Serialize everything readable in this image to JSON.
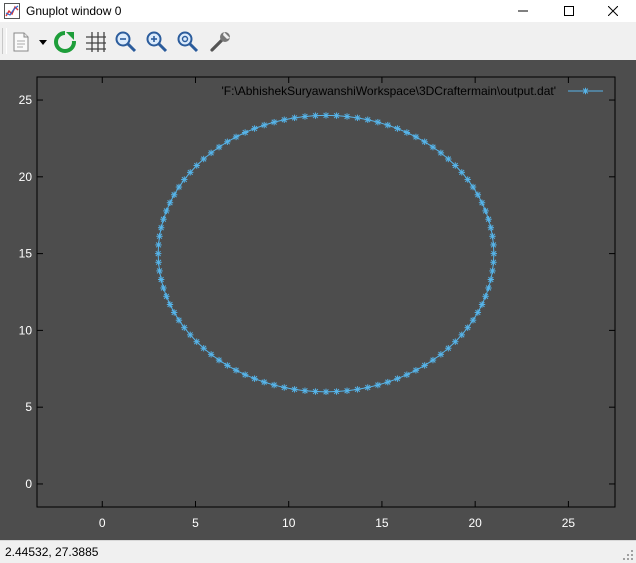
{
  "window": {
    "title": "Gnuplot window 0",
    "icons": {
      "app": "gnuplot-app-icon",
      "minimize": "minimize-icon",
      "maximize": "maximize-icon",
      "close": "close-icon"
    }
  },
  "toolbar": {
    "items": [
      {
        "name": "copy-to-clipboard-button",
        "icon": "clipboard-icon"
      },
      {
        "name": "dropdown-button",
        "icon": "chevron-down-icon"
      },
      {
        "name": "replot-button",
        "icon": "replot-icon"
      },
      {
        "name": "grid-button",
        "icon": "grid-icon"
      },
      {
        "name": "zoom-out-button",
        "icon": "zoom-out-icon"
      },
      {
        "name": "zoom-in-button",
        "icon": "zoom-in-icon"
      },
      {
        "name": "zoom-autoscale-button",
        "icon": "zoom-autoscale-icon"
      },
      {
        "name": "options-button",
        "icon": "wrench-icon"
      }
    ]
  },
  "status": {
    "text": "2.44532,  27.3885"
  },
  "colors": {
    "plot_bg": "#4d4d4d",
    "series": "#56b4e9",
    "axis_text": "#ffffff",
    "border": "#000000"
  },
  "chart_data": {
    "type": "scatter",
    "title": "",
    "xlabel": "",
    "ylabel": "",
    "xlim": [
      -3.5,
      27.5
    ],
    "ylim": [
      -1.5,
      26.5
    ],
    "x_ticks": [
      0,
      5,
      10,
      15,
      20,
      25
    ],
    "y_ticks": [
      0,
      5,
      10,
      15,
      20,
      25
    ],
    "grid": false,
    "legend_position": "top-right",
    "point_style": "asterisk-with-line",
    "series": [
      {
        "name": "'F:\\AbhishekSuryawanshiWorkspace\\3DCraftermain\\output.dat'",
        "center": [
          12,
          15
        ],
        "radius_x": 9,
        "radius_y": 9,
        "num_points": 100
      }
    ]
  }
}
